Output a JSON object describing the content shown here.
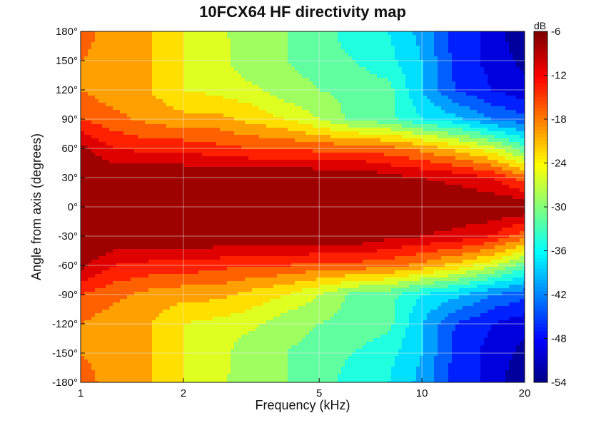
{
  "chart_data": {
    "type": "heatmap",
    "title": "10FCX64 HF directivity map",
    "xlabel": "Frequency (kHz)",
    "ylabel": "Angle from axis (degrees)",
    "x_scale": "log",
    "xlim": [
      1,
      20
    ],
    "ylim": [
      -180,
      180
    ],
    "x_ticks": [
      1,
      2,
      5,
      10,
      20
    ],
    "x_tick_labels": [
      "1",
      "2",
      "5",
      "10",
      "20"
    ],
    "y_ticks": [
      180,
      150,
      120,
      90,
      60,
      30,
      0,
      -30,
      -60,
      -90,
      -120,
      -150,
      -180
    ],
    "y_tick_labels": [
      "180°",
      "150°",
      "120°",
      "90°",
      "60°",
      "30°",
      "0°",
      "-30°",
      "-60°",
      "-90°",
      "-120°",
      "-150°",
      "-180°"
    ],
    "grid": true,
    "colorbar": {
      "label": "dB",
      "min": -54,
      "max": -6,
      "ticks": [
        -6,
        -12,
        -18,
        -24,
        -30,
        -36,
        -42,
        -48,
        -54
      ],
      "tick_labels": [
        "-6",
        "-12",
        "-18",
        "-24",
        "-30",
        "-36",
        "-42",
        "-48",
        "-54"
      ],
      "colormap": "jet"
    },
    "contour_levels_db": [
      -6,
      -9,
      -12,
      -15,
      -18,
      -21,
      -24,
      -27,
      -30,
      -33,
      -36,
      -39,
      -42,
      -45,
      -48,
      -51,
      -54
    ],
    "frequency_khz": [
      1,
      1.25,
      1.6,
      2,
      2.5,
      3.15,
      4,
      5,
      6.3,
      8,
      10,
      12.5,
      16,
      20
    ],
    "angles_deg": [
      0,
      30,
      60,
      90,
      120,
      150,
      180
    ],
    "level_db": [
      [
        -6,
        -6,
        -6,
        -6,
        -6,
        -6,
        -6,
        -6,
        -6,
        -6,
        -6,
        -6,
        -6,
        -6
      ],
      [
        -6,
        -6,
        -6,
        -6,
        -6,
        -6,
        -6,
        -6,
        -6,
        -8,
        -9,
        -10,
        -12,
        -17
      ],
      [
        -8,
        -12,
        -13,
        -13,
        -14,
        -15,
        -15,
        -16,
        -16,
        -17,
        -19,
        -22,
        -26,
        -32
      ],
      [
        -15,
        -17,
        -19,
        -20,
        -20,
        -22,
        -24,
        -27,
        -31,
        -32,
        -36,
        -38,
        -42,
        -44
      ],
      [
        -18,
        -20,
        -21,
        -24,
        -25,
        -26,
        -29,
        -30,
        -31,
        -32,
        -39,
        -45,
        -48,
        -50
      ],
      [
        -18,
        -20,
        -21,
        -24,
        -25,
        -30,
        -30,
        -31,
        -33,
        -35,
        -39,
        -46,
        -49,
        -52
      ],
      [
        -16,
        -20,
        -21,
        -24,
        -26,
        -29,
        -30,
        -31,
        -35,
        -36,
        -40,
        -46,
        -49,
        -54
      ]
    ]
  }
}
